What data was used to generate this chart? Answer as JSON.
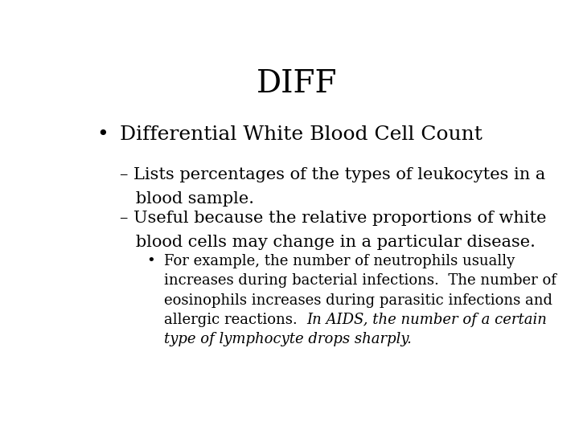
{
  "title": "DIFF",
  "background_color": "#ffffff",
  "text_color": "#000000",
  "title_fontsize": 28,
  "bullet1_fontsize": 18,
  "sub_fontsize": 15,
  "subsub_fontsize": 13,
  "bullet1": "Differential White Blood Cell Count",
  "sub1_line1": "– Lists percentages of the types of leukocytes in a",
  "sub1_line2": "   blood sample.",
  "sub2_line1": "– Useful because the relative proportions of white",
  "sub2_line2": "   blood cells may change in a particular disease.",
  "ss_line1": "For example, the number of neutrophils usually",
  "ss_line2": "increases during bacterial infections.  The number of",
  "ss_line3": "eosinophils increases during parasitic infections and",
  "ss_line4_normal": "allergic reactions.  ",
  "ss_line4_italic": "In AIDS, the number of a certain",
  "ss_line5_italic": "type of lymphocyte drops sharply."
}
